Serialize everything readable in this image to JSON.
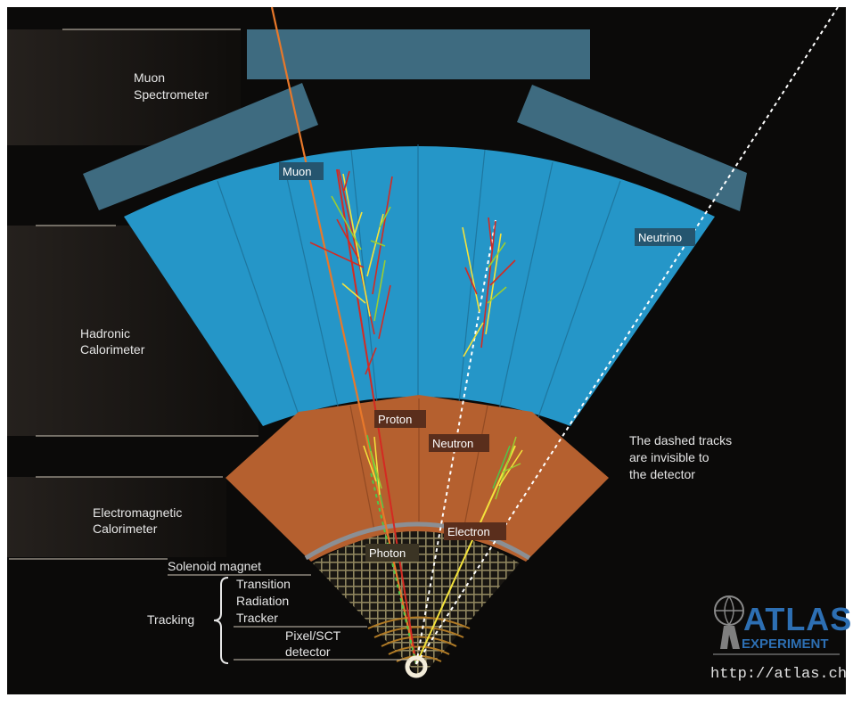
{
  "layer_labels": {
    "muon_spectrometer": [
      "Muon",
      "Spectrometer"
    ],
    "hadronic_calorimeter": [
      "Hadronic",
      "Calorimeter"
    ],
    "electromagnetic_calorimeter": [
      "Electromagnetic",
      "Calorimeter"
    ],
    "solenoid_magnet": "Solenoid magnet",
    "transition_radiation_tracker": [
      "Transition",
      "Radiation",
      "Tracker"
    ],
    "pixel_sct_detector": [
      "Pixel/SCT",
      "detector"
    ],
    "tracking": "Tracking"
  },
  "particle_labels": {
    "muon": "Muon",
    "neutrino": "Neutrino",
    "proton": "Proton",
    "neutron": "Neutron",
    "electron": "Electron",
    "photon": "Photon"
  },
  "note": [
    "The dashed tracks",
    "are invisible to",
    "the detector"
  ],
  "logo": {
    "name": "ATLAS",
    "subtitle": "EXPERIMENT",
    "url": "http://atlas.ch"
  },
  "colors": {
    "background": "#0b0a09",
    "muon_chambers": "#3e6b80",
    "hadronic": "#2596c8",
    "electromagnetic": "#b5602f",
    "muon_track": "#e8782a",
    "proton_track": "#d42a22",
    "logo_blue": "#2d6fb3"
  }
}
